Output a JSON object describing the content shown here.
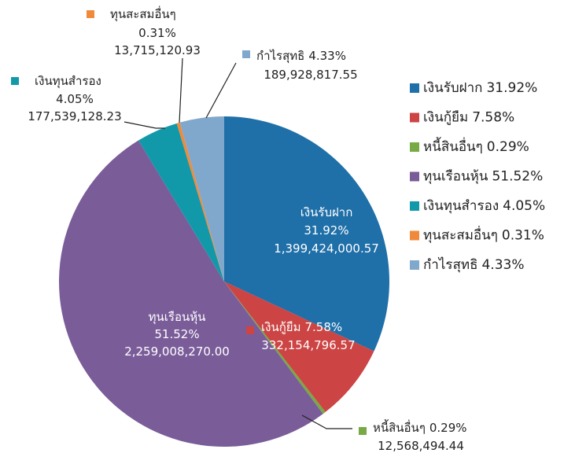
{
  "chart_data": {
    "type": "pie",
    "categories": [
      "เงินรับฝาก",
      "เงินกู้ยืม",
      "หนี้สินอื่นๆ",
      "ทุนเรือนหุ้น",
      "เงินทุนสำรอง",
      "ทุนสะสมอื่นๆ",
      "กำไรสุทธิ"
    ],
    "values": [
      31.92,
      7.58,
      0.29,
      51.52,
      4.05,
      0.31,
      4.33
    ],
    "value_labels": [
      "31.92%",
      "7.58%",
      "0.29%",
      "51.52%",
      "4.05%",
      "0.31%",
      "4.33%"
    ],
    "amount_labels": [
      "1,399,424,000.57",
      "332,154,796.57",
      "12,568,494.44",
      "2,259,008,270.00",
      "177,539,128.23",
      "13,715,120.93",
      "189,928,817.55"
    ],
    "colors": [
      "#1f6fa8",
      "#cc4444",
      "#77aa44",
      "#7a5c99",
      "#1199aa",
      "#f08a3a",
      "#80a8cc"
    ],
    "legend": "right"
  }
}
